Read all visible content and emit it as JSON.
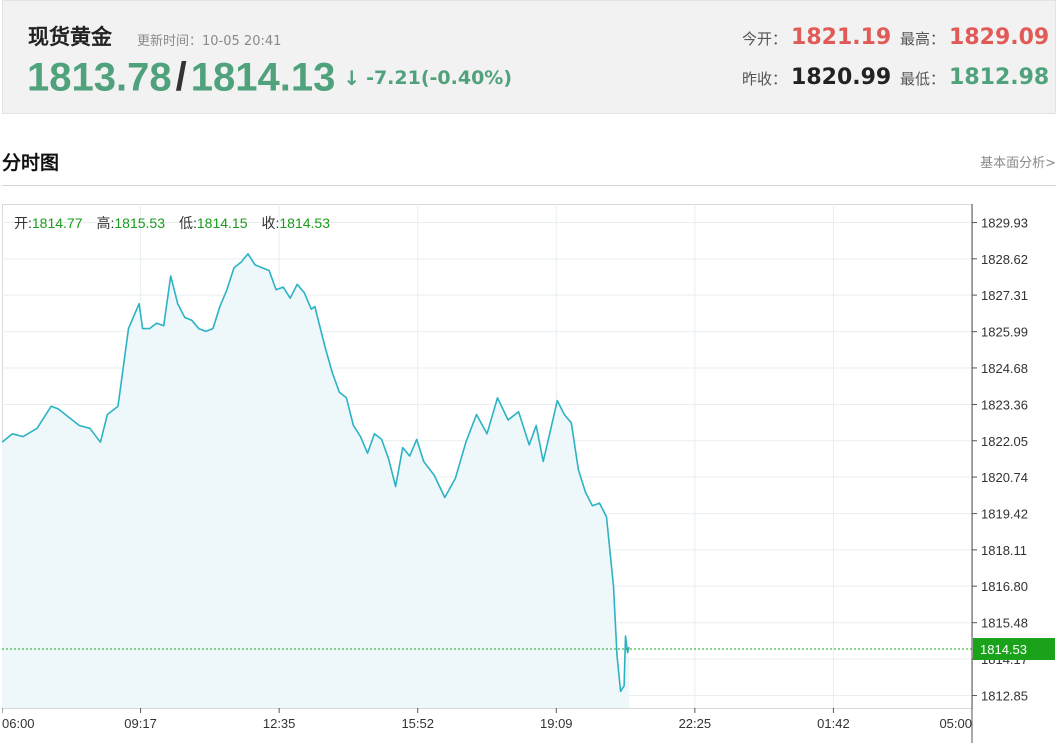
{
  "header": {
    "title": "现货黄金",
    "update_label": "更新时间：",
    "update_time": "10-05 20:41",
    "bid": "1813.78",
    "slash": "/",
    "ask": "1814.13",
    "arrow": "↓",
    "change": "-7.21(-0.40%)",
    "open_label": "今开：",
    "open_value": "1821.19",
    "high_label": "最高：",
    "high_value": "1829.09",
    "prev_close_label": "昨收：",
    "prev_close_value": "1820.99",
    "low_label": "最低：",
    "low_value": "1812.98",
    "colors": {
      "up": "#e05a58",
      "down": "#4fa27c"
    }
  },
  "section": {
    "title": "分时图",
    "link": "基本面分析>"
  },
  "ohlc": {
    "open_label": "开:",
    "open": "1814.77",
    "high_label": "高:",
    "high": "1815.53",
    "low_label": "低:",
    "low": "1814.15",
    "close_label": "收:",
    "close": "1814.53"
  },
  "chart_data": {
    "type": "area",
    "title": "",
    "xlabel": "",
    "ylabel": "",
    "x_ticks": [
      "06:00",
      "09:17",
      "12:35",
      "15:52",
      "19:09",
      "22:25",
      "01:42",
      "05:00"
    ],
    "y_ticks": [
      "1829.93",
      "1828.62",
      "1827.31",
      "1825.99",
      "1824.68",
      "1823.36",
      "1822.05",
      "1820.74",
      "1819.42",
      "1818.11",
      "1816.80",
      "1815.48",
      "1814.17",
      "1812.85"
    ],
    "ylim": [
      1812.4,
      1830.6
    ],
    "xlim_minutes": [
      0,
      1380
    ],
    "grid": true,
    "current_value": "1814.53",
    "current_label_color": "#1aa31a",
    "line_color": "#2bb3c4",
    "fill_color": "#eef8fb",
    "series": [
      {
        "x": [
          0,
          15,
          30,
          50,
          70,
          80,
          95,
          110,
          125,
          140,
          150,
          165,
          180,
          195,
          200,
          210,
          220,
          230,
          240,
          250,
          260,
          270,
          280,
          290,
          300,
          310,
          320,
          330,
          340,
          350,
          360,
          370,
          380,
          390,
          400,
          410,
          420,
          430,
          440,
          445,
          460,
          470,
          480,
          490,
          500,
          510,
          520,
          530,
          540,
          550,
          560,
          570,
          580,
          590,
          600,
          615,
          630,
          645,
          660,
          675,
          690,
          705,
          720,
          735,
          750,
          760,
          770,
          780,
          790,
          800,
          810,
          820,
          830,
          840,
          850,
          860,
          870,
          875,
          880,
          885,
          887,
          890,
          892
        ],
        "values": [
          1822.0,
          1822.3,
          1822.2,
          1822.5,
          1823.3,
          1823.2,
          1822.9,
          1822.6,
          1822.5,
          1822.0,
          1823.0,
          1823.3,
          1826.1,
          1827.0,
          1826.1,
          1826.1,
          1826.3,
          1826.2,
          1828.0,
          1827.0,
          1826.5,
          1826.4,
          1826.1,
          1826.0,
          1826.1,
          1826.9,
          1827.5,
          1828.3,
          1828.5,
          1828.8,
          1828.4,
          1828.3,
          1828.2,
          1827.5,
          1827.6,
          1827.2,
          1827.7,
          1827.4,
          1826.8,
          1826.9,
          1825.4,
          1824.5,
          1823.8,
          1823.6,
          1822.6,
          1822.2,
          1821.6,
          1822.3,
          1822.1,
          1821.4,
          1820.4,
          1821.8,
          1821.5,
          1822.1,
          1821.3,
          1820.8,
          1820.0,
          1820.7,
          1822.0,
          1823.0,
          1822.3,
          1823.6,
          1822.8,
          1823.1,
          1821.9,
          1822.6,
          1821.3,
          1822.4,
          1823.5,
          1823.0,
          1822.7,
          1821.0,
          1820.2,
          1819.7,
          1819.8,
          1819.3,
          1816.8,
          1814.3,
          1813.0,
          1813.2,
          1815.0,
          1814.4,
          1814.6
        ]
      }
    ]
  }
}
